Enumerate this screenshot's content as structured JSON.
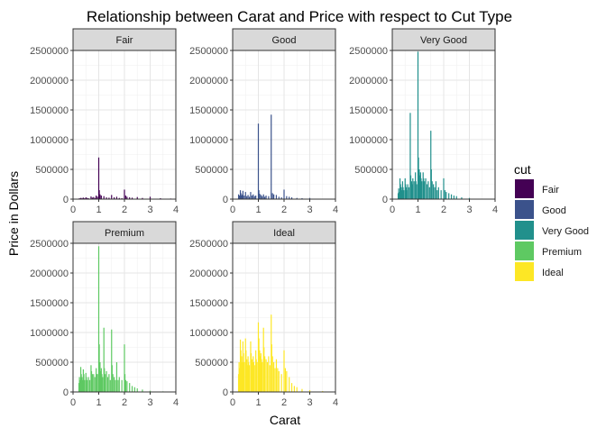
{
  "chart_data": {
    "type": "bar",
    "title": "Relationship between Carat and Price with respect to Cut Type",
    "xlabel": "Carat",
    "ylabel": "Price in Dollars",
    "xlim": [
      0,
      4
    ],
    "ylim": [
      0,
      2500000
    ],
    "x_ticks": [
      "0",
      "1",
      "2",
      "3",
      "4"
    ],
    "y_ticks": [
      "0",
      "500000",
      "1000000",
      "1500000",
      "2000000",
      "2500000"
    ],
    "y_tick_values": [
      0,
      500000,
      1000000,
      1500000,
      2000000,
      2500000
    ],
    "x_tick_values": [
      0,
      1,
      2,
      3,
      4
    ],
    "grid": true,
    "legend_position": "right",
    "legend_title": "cut",
    "panels": [
      {
        "name": "Fair",
        "color": "#440154",
        "bars": [
          [
            0.25,
            15000
          ],
          [
            0.3,
            20000
          ],
          [
            0.35,
            18000
          ],
          [
            0.4,
            25000
          ],
          [
            0.45,
            15000
          ],
          [
            0.5,
            30000
          ],
          [
            0.55,
            20000
          ],
          [
            0.6,
            15000
          ],
          [
            0.7,
            45000
          ],
          [
            0.75,
            25000
          ],
          [
            0.8,
            35000
          ],
          [
            0.85,
            20000
          ],
          [
            0.9,
            60000
          ],
          [
            0.95,
            40000
          ],
          [
            1.0,
            700000
          ],
          [
            1.02,
            150000
          ],
          [
            1.05,
            80000
          ],
          [
            1.1,
            60000
          ],
          [
            1.2,
            50000
          ],
          [
            1.3,
            30000
          ],
          [
            1.4,
            25000
          ],
          [
            1.5,
            70000
          ],
          [
            1.6,
            30000
          ],
          [
            1.7,
            40000
          ],
          [
            1.8,
            20000
          ],
          [
            1.9,
            15000
          ],
          [
            2.0,
            160000
          ],
          [
            2.05,
            60000
          ],
          [
            2.1,
            40000
          ],
          [
            2.2,
            30000
          ],
          [
            2.3,
            25000
          ],
          [
            2.5,
            35000
          ],
          [
            2.7,
            20000
          ],
          [
            3.0,
            40000
          ],
          [
            3.4,
            15000
          ],
          [
            3.8,
            10000
          ]
        ]
      },
      {
        "name": "Good",
        "color": "#3B528B",
        "bars": [
          [
            0.23,
            80000
          ],
          [
            0.26,
            60000
          ],
          [
            0.3,
            150000
          ],
          [
            0.32,
            100000
          ],
          [
            0.35,
            60000
          ],
          [
            0.38,
            80000
          ],
          [
            0.4,
            140000
          ],
          [
            0.45,
            60000
          ],
          [
            0.5,
            120000
          ],
          [
            0.55,
            50000
          ],
          [
            0.6,
            70000
          ],
          [
            0.65,
            40000
          ],
          [
            0.7,
            120000
          ],
          [
            0.75,
            60000
          ],
          [
            0.8,
            80000
          ],
          [
            0.85,
            50000
          ],
          [
            0.9,
            60000
          ],
          [
            1.0,
            1270000
          ],
          [
            1.02,
            150000
          ],
          [
            1.05,
            90000
          ],
          [
            1.1,
            70000
          ],
          [
            1.15,
            50000
          ],
          [
            1.2,
            80000
          ],
          [
            1.25,
            40000
          ],
          [
            1.3,
            60000
          ],
          [
            1.4,
            50000
          ],
          [
            1.5,
            1420000
          ],
          [
            1.55,
            100000
          ],
          [
            1.6,
            80000
          ],
          [
            1.7,
            70000
          ],
          [
            1.8,
            40000
          ],
          [
            1.9,
            30000
          ],
          [
            2.0,
            160000
          ],
          [
            2.1,
            50000
          ],
          [
            2.2,
            40000
          ],
          [
            2.3,
            30000
          ],
          [
            2.5,
            20000
          ],
          [
            2.7,
            15000
          ],
          [
            3.0,
            20000
          ]
        ]
      },
      {
        "name": "Very Good",
        "color": "#21908C",
        "bars": [
          [
            0.23,
            100000
          ],
          [
            0.25,
            180000
          ],
          [
            0.28,
            120000
          ],
          [
            0.3,
            350000
          ],
          [
            0.32,
            250000
          ],
          [
            0.35,
            200000
          ],
          [
            0.38,
            150000
          ],
          [
            0.4,
            300000
          ],
          [
            0.42,
            200000
          ],
          [
            0.45,
            150000
          ],
          [
            0.5,
            350000
          ],
          [
            0.52,
            250000
          ],
          [
            0.55,
            200000
          ],
          [
            0.58,
            150000
          ],
          [
            0.6,
            250000
          ],
          [
            0.65,
            200000
          ],
          [
            0.7,
            1450000
          ],
          [
            0.72,
            400000
          ],
          [
            0.75,
            300000
          ],
          [
            0.78,
            250000
          ],
          [
            0.8,
            350000
          ],
          [
            0.85,
            300000
          ],
          [
            0.9,
            450000
          ],
          [
            0.92,
            300000
          ],
          [
            0.95,
            250000
          ],
          [
            1.0,
            2480000
          ],
          [
            1.02,
            700000
          ],
          [
            1.05,
            500000
          ],
          [
            1.08,
            400000
          ],
          [
            1.1,
            450000
          ],
          [
            1.12,
            350000
          ],
          [
            1.15,
            300000
          ],
          [
            1.2,
            450000
          ],
          [
            1.22,
            350000
          ],
          [
            1.25,
            300000
          ],
          [
            1.3,
            350000
          ],
          [
            1.35,
            250000
          ],
          [
            1.4,
            300000
          ],
          [
            1.45,
            200000
          ],
          [
            1.5,
            1150000
          ],
          [
            1.52,
            500000
          ],
          [
            1.55,
            300000
          ],
          [
            1.6,
            250000
          ],
          [
            1.65,
            200000
          ],
          [
            1.7,
            300000
          ],
          [
            1.75,
            150000
          ],
          [
            1.8,
            200000
          ],
          [
            1.9,
            150000
          ],
          [
            2.0,
            350000
          ],
          [
            2.05,
            150000
          ],
          [
            2.1,
            120000
          ],
          [
            2.2,
            100000
          ],
          [
            2.3,
            80000
          ],
          [
            2.4,
            60000
          ],
          [
            2.5,
            50000
          ],
          [
            2.7,
            30000
          ],
          [
            3.0,
            20000
          ]
        ]
      },
      {
        "name": "Premium",
        "color": "#5EC962",
        "bars": [
          [
            0.23,
            150000
          ],
          [
            0.25,
            250000
          ],
          [
            0.28,
            200000
          ],
          [
            0.3,
            420000
          ],
          [
            0.32,
            300000
          ],
          [
            0.35,
            250000
          ],
          [
            0.38,
            200000
          ],
          [
            0.4,
            380000
          ],
          [
            0.42,
            300000
          ],
          [
            0.45,
            200000
          ],
          [
            0.5,
            320000
          ],
          [
            0.52,
            250000
          ],
          [
            0.55,
            200000
          ],
          [
            0.6,
            250000
          ],
          [
            0.65,
            200000
          ],
          [
            0.7,
            450000
          ],
          [
            0.72,
            350000
          ],
          [
            0.75,
            300000
          ],
          [
            0.8,
            300000
          ],
          [
            0.85,
            250000
          ],
          [
            0.9,
            400000
          ],
          [
            0.92,
            300000
          ],
          [
            0.95,
            300000
          ],
          [
            1.0,
            2450000
          ],
          [
            1.02,
            800000
          ],
          [
            1.05,
            500000
          ],
          [
            1.08,
            350000
          ],
          [
            1.1,
            400000
          ],
          [
            1.12,
            300000
          ],
          [
            1.15,
            250000
          ],
          [
            1.2,
            1080000
          ],
          [
            1.22,
            400000
          ],
          [
            1.25,
            300000
          ],
          [
            1.3,
            350000
          ],
          [
            1.35,
            250000
          ],
          [
            1.4,
            300000
          ],
          [
            1.45,
            200000
          ],
          [
            1.5,
            1050000
          ],
          [
            1.52,
            450000
          ],
          [
            1.55,
            300000
          ],
          [
            1.6,
            250000
          ],
          [
            1.65,
            200000
          ],
          [
            1.7,
            500000
          ],
          [
            1.75,
            200000
          ],
          [
            1.8,
            250000
          ],
          [
            1.9,
            200000
          ],
          [
            2.0,
            800000
          ],
          [
            2.02,
            300000
          ],
          [
            2.05,
            200000
          ],
          [
            2.1,
            180000
          ],
          [
            2.2,
            150000
          ],
          [
            2.3,
            100000
          ],
          [
            2.4,
            80000
          ],
          [
            2.5,
            60000
          ],
          [
            2.7,
            40000
          ],
          [
            3.0,
            20000
          ],
          [
            3.5,
            10000
          ]
        ]
      },
      {
        "name": "Ideal",
        "color": "#FDE725",
        "bars": [
          [
            0.23,
            300000
          ],
          [
            0.25,
            500000
          ],
          [
            0.28,
            400000
          ],
          [
            0.3,
            880000
          ],
          [
            0.32,
            700000
          ],
          [
            0.35,
            600000
          ],
          [
            0.38,
            500000
          ],
          [
            0.4,
            850000
          ],
          [
            0.42,
            650000
          ],
          [
            0.45,
            500000
          ],
          [
            0.5,
            900000
          ],
          [
            0.52,
            700000
          ],
          [
            0.55,
            550000
          ],
          [
            0.58,
            450000
          ],
          [
            0.6,
            600000
          ],
          [
            0.62,
            500000
          ],
          [
            0.65,
            450000
          ],
          [
            0.7,
            850000
          ],
          [
            0.72,
            650000
          ],
          [
            0.75,
            550000
          ],
          [
            0.78,
            500000
          ],
          [
            0.8,
            600000
          ],
          [
            0.82,
            500000
          ],
          [
            0.85,
            450000
          ],
          [
            0.9,
            700000
          ],
          [
            0.92,
            550000
          ],
          [
            0.95,
            500000
          ],
          [
            1.0,
            1170000
          ],
          [
            1.02,
            900000
          ],
          [
            1.05,
            700000
          ],
          [
            1.08,
            600000
          ],
          [
            1.1,
            650000
          ],
          [
            1.12,
            550000
          ],
          [
            1.15,
            500000
          ],
          [
            1.2,
            1080000
          ],
          [
            1.22,
            750000
          ],
          [
            1.25,
            600000
          ],
          [
            1.3,
            550000
          ],
          [
            1.35,
            500000
          ],
          [
            1.4,
            600000
          ],
          [
            1.45,
            450000
          ],
          [
            1.5,
            1300000
          ],
          [
            1.52,
            800000
          ],
          [
            1.55,
            600000
          ],
          [
            1.6,
            500000
          ],
          [
            1.65,
            400000
          ],
          [
            1.7,
            550000
          ],
          [
            1.75,
            400000
          ],
          [
            1.8,
            350000
          ],
          [
            1.9,
            300000
          ],
          [
            2.0,
            700000
          ],
          [
            2.05,
            400000
          ],
          [
            2.1,
            350000
          ],
          [
            2.2,
            250000
          ],
          [
            2.3,
            150000
          ],
          [
            2.4,
            100000
          ],
          [
            2.5,
            80000
          ],
          [
            2.7,
            50000
          ],
          [
            3.0,
            30000
          ],
          [
            3.5,
            15000
          ]
        ]
      }
    ]
  }
}
